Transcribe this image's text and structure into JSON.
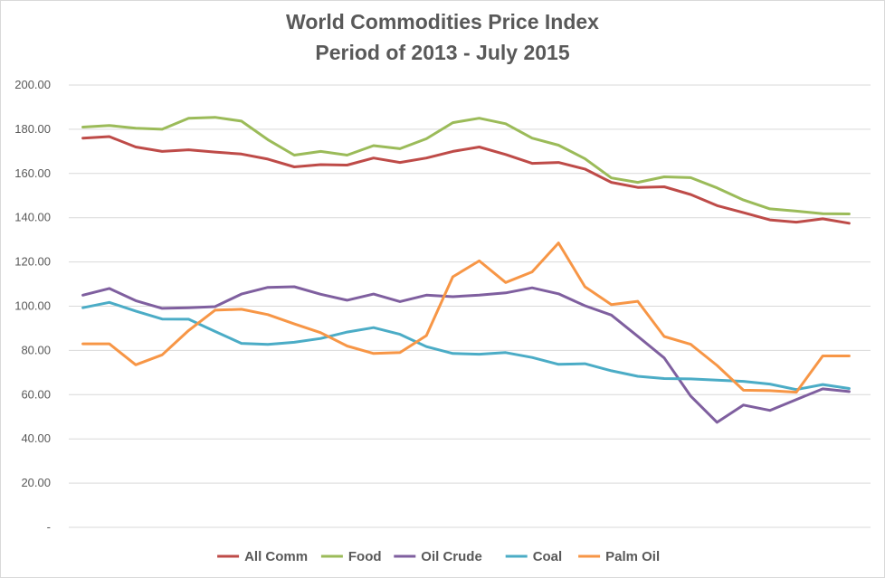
{
  "chart_data": {
    "type": "line",
    "title": "World Commodities Price Index",
    "subtitle": "Period of 2013 - July 2015",
    "xlabel": "",
    "ylabel": "",
    "ylim": [
      0,
      200
    ],
    "y_ticks": [
      0,
      20,
      40,
      60,
      80,
      100,
      120,
      140,
      160,
      180,
      200
    ],
    "y_tick_labels": [
      "-",
      "20.00",
      "40.00",
      "60.00",
      "80.00",
      "100.00",
      "120.00",
      "140.00",
      "160.00",
      "180.00",
      "200.00"
    ],
    "grid": true,
    "legend_position": "bottom",
    "x_count": 31,
    "series": [
      {
        "name": "All Comm",
        "color": "#be4b48",
        "values": [
          176,
          176.7,
          172,
          170,
          170.7,
          169.7,
          168.8,
          166.5,
          163,
          164,
          163.8,
          167,
          165,
          167,
          170,
          172,
          168.6,
          164.6,
          165,
          162,
          156,
          153.7,
          154,
          150.5,
          145.5,
          142.3,
          139,
          138,
          139.5,
          137.5,
          null
        ]
      },
      {
        "name": "Food",
        "color": "#9bbb59",
        "values": [
          181,
          181.7,
          180.5,
          180,
          185,
          185.4,
          183.7,
          175.3,
          168.3,
          170,
          168.3,
          172.6,
          171.2,
          175.7,
          183,
          185,
          182.5,
          176,
          172.8,
          166.7,
          158,
          156,
          158.5,
          158.1,
          153.5,
          148,
          144,
          143,
          141.8,
          141.7,
          null
        ]
      },
      {
        "name": "Oil Crude",
        "color": "#7f5f9f",
        "values": [
          105,
          108,
          102.5,
          99,
          99.3,
          99.8,
          105.5,
          108.5,
          108.8,
          105.4,
          102.7,
          105.5,
          102.1,
          105,
          104.3,
          105,
          106,
          108.3,
          105.6,
          100.2,
          96,
          86.4,
          76.6,
          59.4,
          47.5,
          55.3,
          52.9,
          57.8,
          62.6,
          61.4,
          null
        ]
      },
      {
        "name": "Coal",
        "color": "#4bacc6",
        "values": [
          99.3,
          101.7,
          97.8,
          94.2,
          94.1,
          88.6,
          83.2,
          82.7,
          83.7,
          85.4,
          88.3,
          90.3,
          87.3,
          81.7,
          78.6,
          78.3,
          79,
          76.8,
          73.7,
          74,
          70.8,
          68.3,
          67.3,
          67.1,
          66.6,
          66,
          64.8,
          62.3,
          64.6,
          62.8,
          null
        ]
      },
      {
        "name": "Palm Oil",
        "color": "#f79646",
        "values": [
          83,
          83,
          73.5,
          78,
          89,
          98.2,
          98.6,
          96.2,
          92,
          88,
          82,
          78.6,
          79,
          86.7,
          113.3,
          120.5,
          110.7,
          115.5,
          128.6,
          108.8,
          100.7,
          102.2,
          86.3,
          82.8,
          73.2,
          62,
          61.8,
          61.1,
          77.5,
          77.5,
          null
        ]
      }
    ]
  }
}
